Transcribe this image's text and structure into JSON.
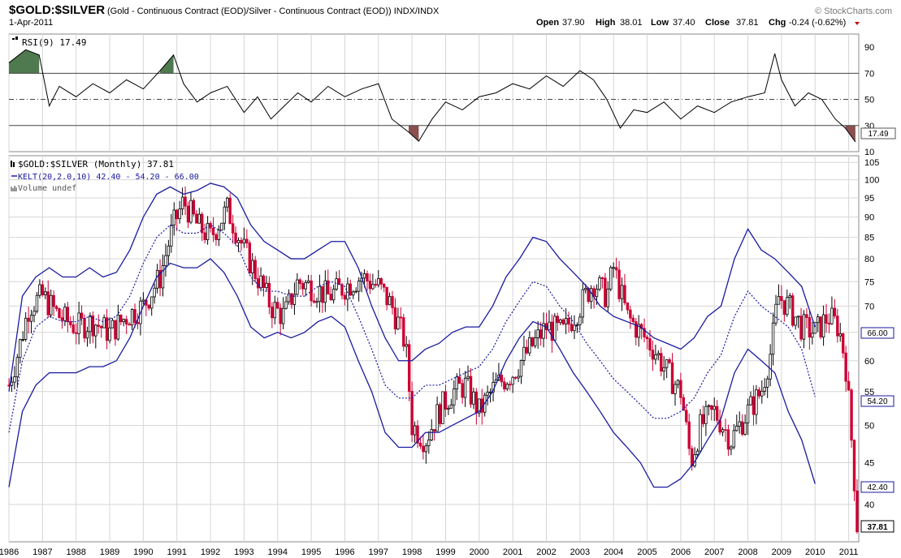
{
  "header": {
    "symbol": "$GOLD:$SILVER",
    "description": "(Gold - Continuous Contract (EOD)/Silver - Continuous Contract (EOD)) INDX/INDX",
    "date": "1-Apr-2011",
    "brand": "© StockCharts.com",
    "open_label": "Open",
    "open": "37.90",
    "high_label": "High",
    "high": "38.01",
    "low_label": "Low",
    "low": "37.40",
    "close_label": "Close",
    "close": "37.81",
    "chg_label": "Chg",
    "chg": "-0.24 (-0.62%)"
  },
  "colors": {
    "up": "#000000",
    "down": "#cc0033",
    "band": "#1a1aa0",
    "rsi_line": "#000000",
    "overbought_fill": "#4f7a4f",
    "oversold_fill": "#8a5050",
    "grid": "#d6d6d6"
  },
  "chart_data": [
    {
      "type": "line",
      "name": "RSI panel",
      "legend": "RSI(9) 17.49",
      "ylim": [
        10,
        100
      ],
      "yticks": [
        10,
        30,
        50,
        70,
        90
      ],
      "levels": [
        30,
        50,
        70
      ],
      "last_value": "17.49",
      "x_years": [
        1986.0,
        1986.5,
        1986.9,
        1987.2,
        1987.5,
        1988.0,
        1988.5,
        1989.0,
        1989.5,
        1990.0,
        1990.5,
        1990.9,
        1991.2,
        1991.6,
        1992.0,
        1992.5,
        1993.0,
        1993.4,
        1993.8,
        1994.2,
        1994.6,
        1995.0,
        1995.5,
        1996.0,
        1996.5,
        1997.0,
        1997.4,
        1997.9,
        1998.2,
        1998.6,
        1999.0,
        1999.5,
        2000.0,
        2000.5,
        2001.0,
        2001.5,
        2002.0,
        2002.5,
        2003.0,
        2003.4,
        2003.8,
        2004.2,
        2004.6,
        2005.0,
        2005.5,
        2006.0,
        2006.5,
        2007.0,
        2007.5,
        2008.0,
        2008.5,
        2008.8,
        2009.0,
        2009.4,
        2009.8,
        2010.2,
        2010.6,
        2010.9,
        2011.2
      ],
      "y_values": [
        78,
        88,
        84,
        45,
        60,
        52,
        62,
        55,
        65,
        58,
        72,
        84,
        62,
        48,
        55,
        60,
        40,
        52,
        35,
        45,
        55,
        48,
        60,
        52,
        58,
        62,
        35,
        25,
        18,
        35,
        48,
        42,
        52,
        55,
        62,
        58,
        68,
        60,
        72,
        65,
        50,
        28,
        42,
        40,
        48,
        35,
        45,
        40,
        48,
        52,
        55,
        85,
        65,
        45,
        55,
        50,
        35,
        28,
        17.49
      ]
    },
    {
      "type": "candlestick",
      "name": "Price panel",
      "legend_price": "$GOLD:$SILVER (Monthly) 37.81",
      "legend_bands": "KELT(20,2.0,10) 42.40 - 54.20 - 66.00",
      "legend_volume": "Volume undef",
      "scale": "log",
      "ylim": [
        36,
        107
      ],
      "yticks": [
        40,
        45,
        50,
        55,
        60,
        65,
        70,
        75,
        80,
        85,
        90,
        95,
        100,
        105
      ],
      "x_ticks": [
        "1986",
        "1987",
        "1988",
        "1989",
        "1990",
        "1991",
        "1992",
        "1993",
        "1994",
        "1995",
        "1996",
        "1997",
        "1998",
        "1999",
        "2000",
        "2001",
        "2002",
        "2003",
        "2004",
        "2005",
        "2006",
        "2007",
        "2008",
        "2009",
        "2010",
        "2011"
      ],
      "close_x": [
        1986.0,
        1986.3,
        1986.6,
        1987.0,
        1987.5,
        1988.0,
        1988.5,
        1989.0,
        1989.5,
        1990.0,
        1990.5,
        1990.9,
        1991.2,
        1991.6,
        1992.0,
        1992.5,
        1993.0,
        1993.4,
        1993.8,
        1994.2,
        1994.6,
        1995.0,
        1995.5,
        1996.0,
        1996.5,
        1997.0,
        1997.4,
        1997.8,
        1998.0,
        1998.4,
        1998.8,
        1999.2,
        1999.6,
        2000.0,
        2000.5,
        2001.0,
        2001.5,
        2002.0,
        2002.5,
        2003.0,
        2003.4,
        2003.8,
        2004.0,
        2004.4,
        2004.8,
        2005.2,
        2005.6,
        2006.0,
        2006.3,
        2006.6,
        2007.0,
        2007.5,
        2008.0,
        2008.4,
        2008.7,
        2008.9,
        2009.2,
        2009.6,
        2010.0,
        2010.4,
        2010.7,
        2010.9,
        2011.1,
        2011.25
      ],
      "close_y": [
        56,
        62,
        70,
        72,
        68,
        66,
        67,
        65,
        68,
        70,
        76,
        88,
        94,
        88,
        85,
        92,
        82,
        76,
        70,
        68,
        75,
        74,
        72,
        74,
        76,
        74,
        70,
        63,
        50,
        48,
        52,
        55,
        56,
        52,
        56,
        58,
        62,
        66,
        65,
        70,
        75,
        72,
        78,
        68,
        65,
        62,
        58,
        55,
        45,
        50,
        52,
        48,
        52,
        55,
        62,
        72,
        70,
        66,
        65,
        68,
        66,
        60,
        47,
        37.81
      ],
      "keltner_upper": [
        55,
        72,
        76,
        78,
        76,
        76,
        78,
        76,
        77,
        82,
        90,
        96,
        98,
        96,
        97,
        99,
        98,
        95,
        88,
        84,
        82,
        80,
        80,
        82,
        84,
        84,
        78,
        70,
        64,
        60,
        60,
        62,
        63,
        65,
        66,
        66,
        70,
        76,
        80,
        85,
        84,
        80,
        77,
        74,
        70,
        68,
        67,
        66,
        64,
        63,
        62,
        64,
        68,
        70,
        80,
        87,
        82,
        80,
        77,
        74,
        66
      ],
      "keltner_middle": [
        49,
        60,
        66,
        68,
        67,
        67,
        68,
        67,
        68,
        72,
        79,
        85,
        88,
        86,
        86,
        88,
        86,
        83,
        76,
        73,
        73,
        72,
        72,
        74,
        75,
        74,
        68,
        62,
        56,
        54,
        54,
        56,
        56,
        57,
        58,
        59,
        62,
        67,
        71,
        75,
        74,
        70,
        67,
        63,
        60,
        57,
        55,
        53,
        51,
        51,
        52,
        54,
        58,
        61,
        68,
        73,
        70,
        68,
        66,
        62,
        54.2
      ],
      "keltner_lower": [
        42,
        52,
        56,
        58,
        58,
        58,
        59,
        59,
        60,
        64,
        70,
        76,
        79,
        78,
        78,
        80,
        77,
        72,
        66,
        64,
        65,
        64,
        65,
        67,
        68,
        66,
        60,
        55,
        49,
        47,
        47,
        49,
        49,
        50,
        51,
        52,
        55,
        60,
        64,
        67,
        66,
        62,
        58,
        55,
        52,
        49,
        47,
        45,
        42,
        42,
        43,
        45,
        48,
        51,
        58,
        62,
        60,
        58,
        52,
        48,
        42.4
      ],
      "band_x": [
        1986.0,
        1986.4,
        1986.8,
        1987.2,
        1987.6,
        1988.0,
        1988.4,
        1988.8,
        1989.2,
        1989.6,
        1990.0,
        1990.4,
        1990.8,
        1991.2,
        1991.6,
        1992.0,
        1992.4,
        1992.8,
        1993.2,
        1993.6,
        1994.0,
        1994.4,
        1994.8,
        1995.2,
        1995.6,
        1996.0,
        1996.4,
        1996.8,
        1997.2,
        1997.6,
        1998.0,
        1998.4,
        1998.8,
        1999.2,
        1999.6,
        2000.0,
        2000.4,
        2000.8,
        2001.2,
        2001.6,
        2002.0,
        2002.4,
        2002.8,
        2003.2,
        2003.6,
        2004.0,
        2004.4,
        2004.8,
        2005.2,
        2005.6,
        2006.0,
        2006.4,
        2006.8,
        2007.2,
        2007.6,
        2008.0,
        2008.4,
        2008.8,
        2009.2,
        2009.6,
        2010.0
      ],
      "last_labels": {
        "upper": "66.00",
        "middle": "54.20",
        "lower": "42.40",
        "close": "37.81"
      }
    }
  ]
}
